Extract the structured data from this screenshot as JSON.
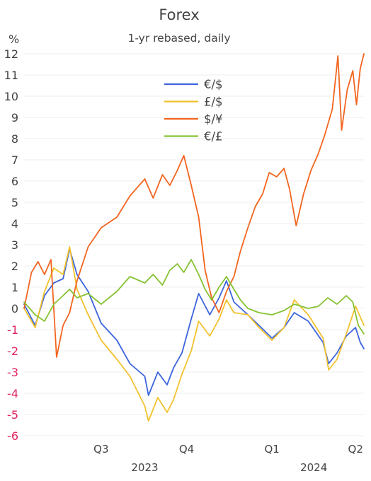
{
  "chart_data": {
    "type": "line",
    "title": "Forex",
    "subtitle": "1-yr rebased, daily",
    "unit_label": "%",
    "ylim": [
      -6,
      12
    ],
    "y_ticks": [
      -6,
      -5,
      -4,
      -3,
      -2,
      -1,
      0,
      1,
      2,
      3,
      4,
      5,
      6,
      7,
      8,
      9,
      10,
      11,
      12
    ],
    "negative_tick_color": "#e0245e",
    "positive_tick_color": "#444444",
    "grid": true,
    "legend_position": "upper-center",
    "x_range": [
      "2023-05-24",
      "2024-05-24"
    ],
    "x_ticks": [
      {
        "label": "Q3",
        "date": "2023-08-15"
      },
      {
        "label": "Q4",
        "date": "2023-11-15"
      },
      {
        "label": "Q1",
        "date": "2024-02-15"
      },
      {
        "label": "Q2",
        "date": "2024-05-15"
      }
    ],
    "year_labels": [
      {
        "label": "2023",
        "date": "2023-10-01"
      },
      {
        "label": "2024",
        "date": "2024-03-31"
      }
    ],
    "series": [
      {
        "name": "€/$",
        "color": "#3c64dc",
        "points": [
          [
            "2023-05-24",
            0.2
          ],
          [
            "2023-06-05",
            -0.8
          ],
          [
            "2023-06-15",
            0.6
          ],
          [
            "2023-06-25",
            1.2
          ],
          [
            "2023-07-05",
            1.4
          ],
          [
            "2023-07-12",
            2.8
          ],
          [
            "2023-07-20",
            1.6
          ],
          [
            "2023-08-01",
            0.8
          ],
          [
            "2023-08-15",
            -0.7
          ],
          [
            "2023-09-01",
            -1.5
          ],
          [
            "2023-09-15",
            -2.6
          ],
          [
            "2023-10-01",
            -3.2
          ],
          [
            "2023-10-05",
            -4.1
          ],
          [
            "2023-10-15",
            -3.0
          ],
          [
            "2023-10-25",
            -3.6
          ],
          [
            "2023-11-01",
            -2.8
          ],
          [
            "2023-11-10",
            -2.1
          ],
          [
            "2023-11-20",
            -0.5
          ],
          [
            "2023-11-28",
            0.7
          ],
          [
            "2023-12-10",
            -0.3
          ],
          [
            "2023-12-20",
            0.5
          ],
          [
            "2023-12-28",
            1.3
          ],
          [
            "2024-01-05",
            0.3
          ],
          [
            "2024-01-20",
            -0.3
          ],
          [
            "2024-02-01",
            -0.8
          ],
          [
            "2024-02-15",
            -1.4
          ],
          [
            "2024-02-28",
            -0.9
          ],
          [
            "2024-03-10",
            -0.2
          ],
          [
            "2024-03-25",
            -0.6
          ],
          [
            "2024-04-10",
            -1.6
          ],
          [
            "2024-04-16",
            -2.6
          ],
          [
            "2024-04-25",
            -2.1
          ],
          [
            "2024-05-05",
            -1.3
          ],
          [
            "2024-05-15",
            -0.9
          ],
          [
            "2024-05-20",
            -1.6
          ],
          [
            "2024-05-24",
            -1.9
          ]
        ]
      },
      {
        "name": "£/$",
        "color": "#f2c12e",
        "points": [
          [
            "2023-05-24",
            0.0
          ],
          [
            "2023-06-05",
            -0.9
          ],
          [
            "2023-06-15",
            0.8
          ],
          [
            "2023-06-25",
            1.9
          ],
          [
            "2023-07-05",
            1.6
          ],
          [
            "2023-07-12",
            2.9
          ],
          [
            "2023-07-20",
            0.9
          ],
          [
            "2023-08-01",
            -0.3
          ],
          [
            "2023-08-15",
            -1.5
          ],
          [
            "2023-09-01",
            -2.4
          ],
          [
            "2023-09-15",
            -3.2
          ],
          [
            "2023-10-01",
            -4.6
          ],
          [
            "2023-10-05",
            -5.3
          ],
          [
            "2023-10-15",
            -4.2
          ],
          [
            "2023-10-25",
            -4.9
          ],
          [
            "2023-11-01",
            -4.3
          ],
          [
            "2023-11-10",
            -3.1
          ],
          [
            "2023-11-20",
            -2.0
          ],
          [
            "2023-11-28",
            -0.6
          ],
          [
            "2023-12-10",
            -1.3
          ],
          [
            "2023-12-20",
            -0.5
          ],
          [
            "2023-12-28",
            0.4
          ],
          [
            "2024-01-05",
            -0.2
          ],
          [
            "2024-01-20",
            -0.3
          ],
          [
            "2024-02-01",
            -0.9
          ],
          [
            "2024-02-15",
            -1.5
          ],
          [
            "2024-02-28",
            -0.9
          ],
          [
            "2024-03-10",
            0.4
          ],
          [
            "2024-03-25",
            -0.3
          ],
          [
            "2024-04-10",
            -1.4
          ],
          [
            "2024-04-16",
            -2.9
          ],
          [
            "2024-04-25",
            -2.4
          ],
          [
            "2024-05-05",
            -1.2
          ],
          [
            "2024-05-15",
            0.1
          ],
          [
            "2024-05-20",
            -0.4
          ],
          [
            "2024-05-24",
            -0.8
          ]
        ]
      },
      {
        "name": "$/¥",
        "color": "#f2651f",
        "points": [
          [
            "2023-05-24",
            0.0
          ],
          [
            "2023-06-01",
            1.7
          ],
          [
            "2023-06-08",
            2.2
          ],
          [
            "2023-06-15",
            1.6
          ],
          [
            "2023-06-22",
            2.3
          ],
          [
            "2023-06-28",
            -2.3
          ],
          [
            "2023-07-05",
            -0.8
          ],
          [
            "2023-07-12",
            -0.2
          ],
          [
            "2023-07-20",
            1.3
          ],
          [
            "2023-08-01",
            2.9
          ],
          [
            "2023-08-15",
            3.8
          ],
          [
            "2023-09-01",
            4.3
          ],
          [
            "2023-09-15",
            5.3
          ],
          [
            "2023-10-01",
            6.1
          ],
          [
            "2023-10-10",
            5.2
          ],
          [
            "2023-10-20",
            6.3
          ],
          [
            "2023-10-28",
            5.8
          ],
          [
            "2023-11-05",
            6.5
          ],
          [
            "2023-11-12",
            7.2
          ],
          [
            "2023-11-20",
            5.8
          ],
          [
            "2023-11-28",
            4.3
          ],
          [
            "2023-12-05",
            1.8
          ],
          [
            "2023-12-12",
            0.5
          ],
          [
            "2023-12-20",
            -0.2
          ],
          [
            "2023-12-28",
            0.8
          ],
          [
            "2024-01-05",
            1.5
          ],
          [
            "2024-01-12",
            2.7
          ],
          [
            "2024-01-20",
            3.8
          ],
          [
            "2024-01-28",
            4.8
          ],
          [
            "2024-02-05",
            5.4
          ],
          [
            "2024-02-12",
            6.4
          ],
          [
            "2024-02-20",
            6.2
          ],
          [
            "2024-02-28",
            6.6
          ],
          [
            "2024-03-05",
            5.6
          ],
          [
            "2024-03-12",
            3.9
          ],
          [
            "2024-03-20",
            5.4
          ],
          [
            "2024-03-28",
            6.5
          ],
          [
            "2024-04-05",
            7.3
          ],
          [
            "2024-04-12",
            8.2
          ],
          [
            "2024-04-20",
            9.4
          ],
          [
            "2024-04-26",
            11.9
          ],
          [
            "2024-04-30",
            8.4
          ],
          [
            "2024-05-06",
            10.3
          ],
          [
            "2024-05-12",
            11.2
          ],
          [
            "2024-05-16",
            9.6
          ],
          [
            "2024-05-20",
            11.3
          ],
          [
            "2024-05-24",
            12.0
          ]
        ]
      },
      {
        "name": "€/£",
        "color": "#86c232",
        "points": [
          [
            "2023-05-24",
            0.3
          ],
          [
            "2023-06-05",
            -0.3
          ],
          [
            "2023-06-15",
            -0.6
          ],
          [
            "2023-06-25",
            0.2
          ],
          [
            "2023-07-05",
            0.6
          ],
          [
            "2023-07-12",
            0.9
          ],
          [
            "2023-07-20",
            0.5
          ],
          [
            "2023-08-01",
            0.7
          ],
          [
            "2023-08-15",
            0.2
          ],
          [
            "2023-09-01",
            0.8
          ],
          [
            "2023-09-15",
            1.5
          ],
          [
            "2023-10-01",
            1.2
          ],
          [
            "2023-10-10",
            1.6
          ],
          [
            "2023-10-20",
            1.1
          ],
          [
            "2023-10-28",
            1.8
          ],
          [
            "2023-11-05",
            2.1
          ],
          [
            "2023-11-12",
            1.7
          ],
          [
            "2023-11-20",
            2.3
          ],
          [
            "2023-11-28",
            1.6
          ],
          [
            "2023-12-05",
            0.9
          ],
          [
            "2023-12-12",
            0.4
          ],
          [
            "2023-12-20",
            1.0
          ],
          [
            "2023-12-28",
            1.5
          ],
          [
            "2024-01-05",
            0.9
          ],
          [
            "2024-01-12",
            0.4
          ],
          [
            "2024-01-20",
            0.0
          ],
          [
            "2024-02-01",
            -0.2
          ],
          [
            "2024-02-15",
            -0.3
          ],
          [
            "2024-02-28",
            -0.1
          ],
          [
            "2024-03-10",
            0.2
          ],
          [
            "2024-03-25",
            0.0
          ],
          [
            "2024-04-05",
            0.1
          ],
          [
            "2024-04-15",
            0.5
          ],
          [
            "2024-04-25",
            0.2
          ],
          [
            "2024-05-05",
            0.6
          ],
          [
            "2024-05-12",
            0.3
          ],
          [
            "2024-05-18",
            -0.8
          ],
          [
            "2024-05-24",
            -1.2
          ]
        ]
      }
    ]
  }
}
